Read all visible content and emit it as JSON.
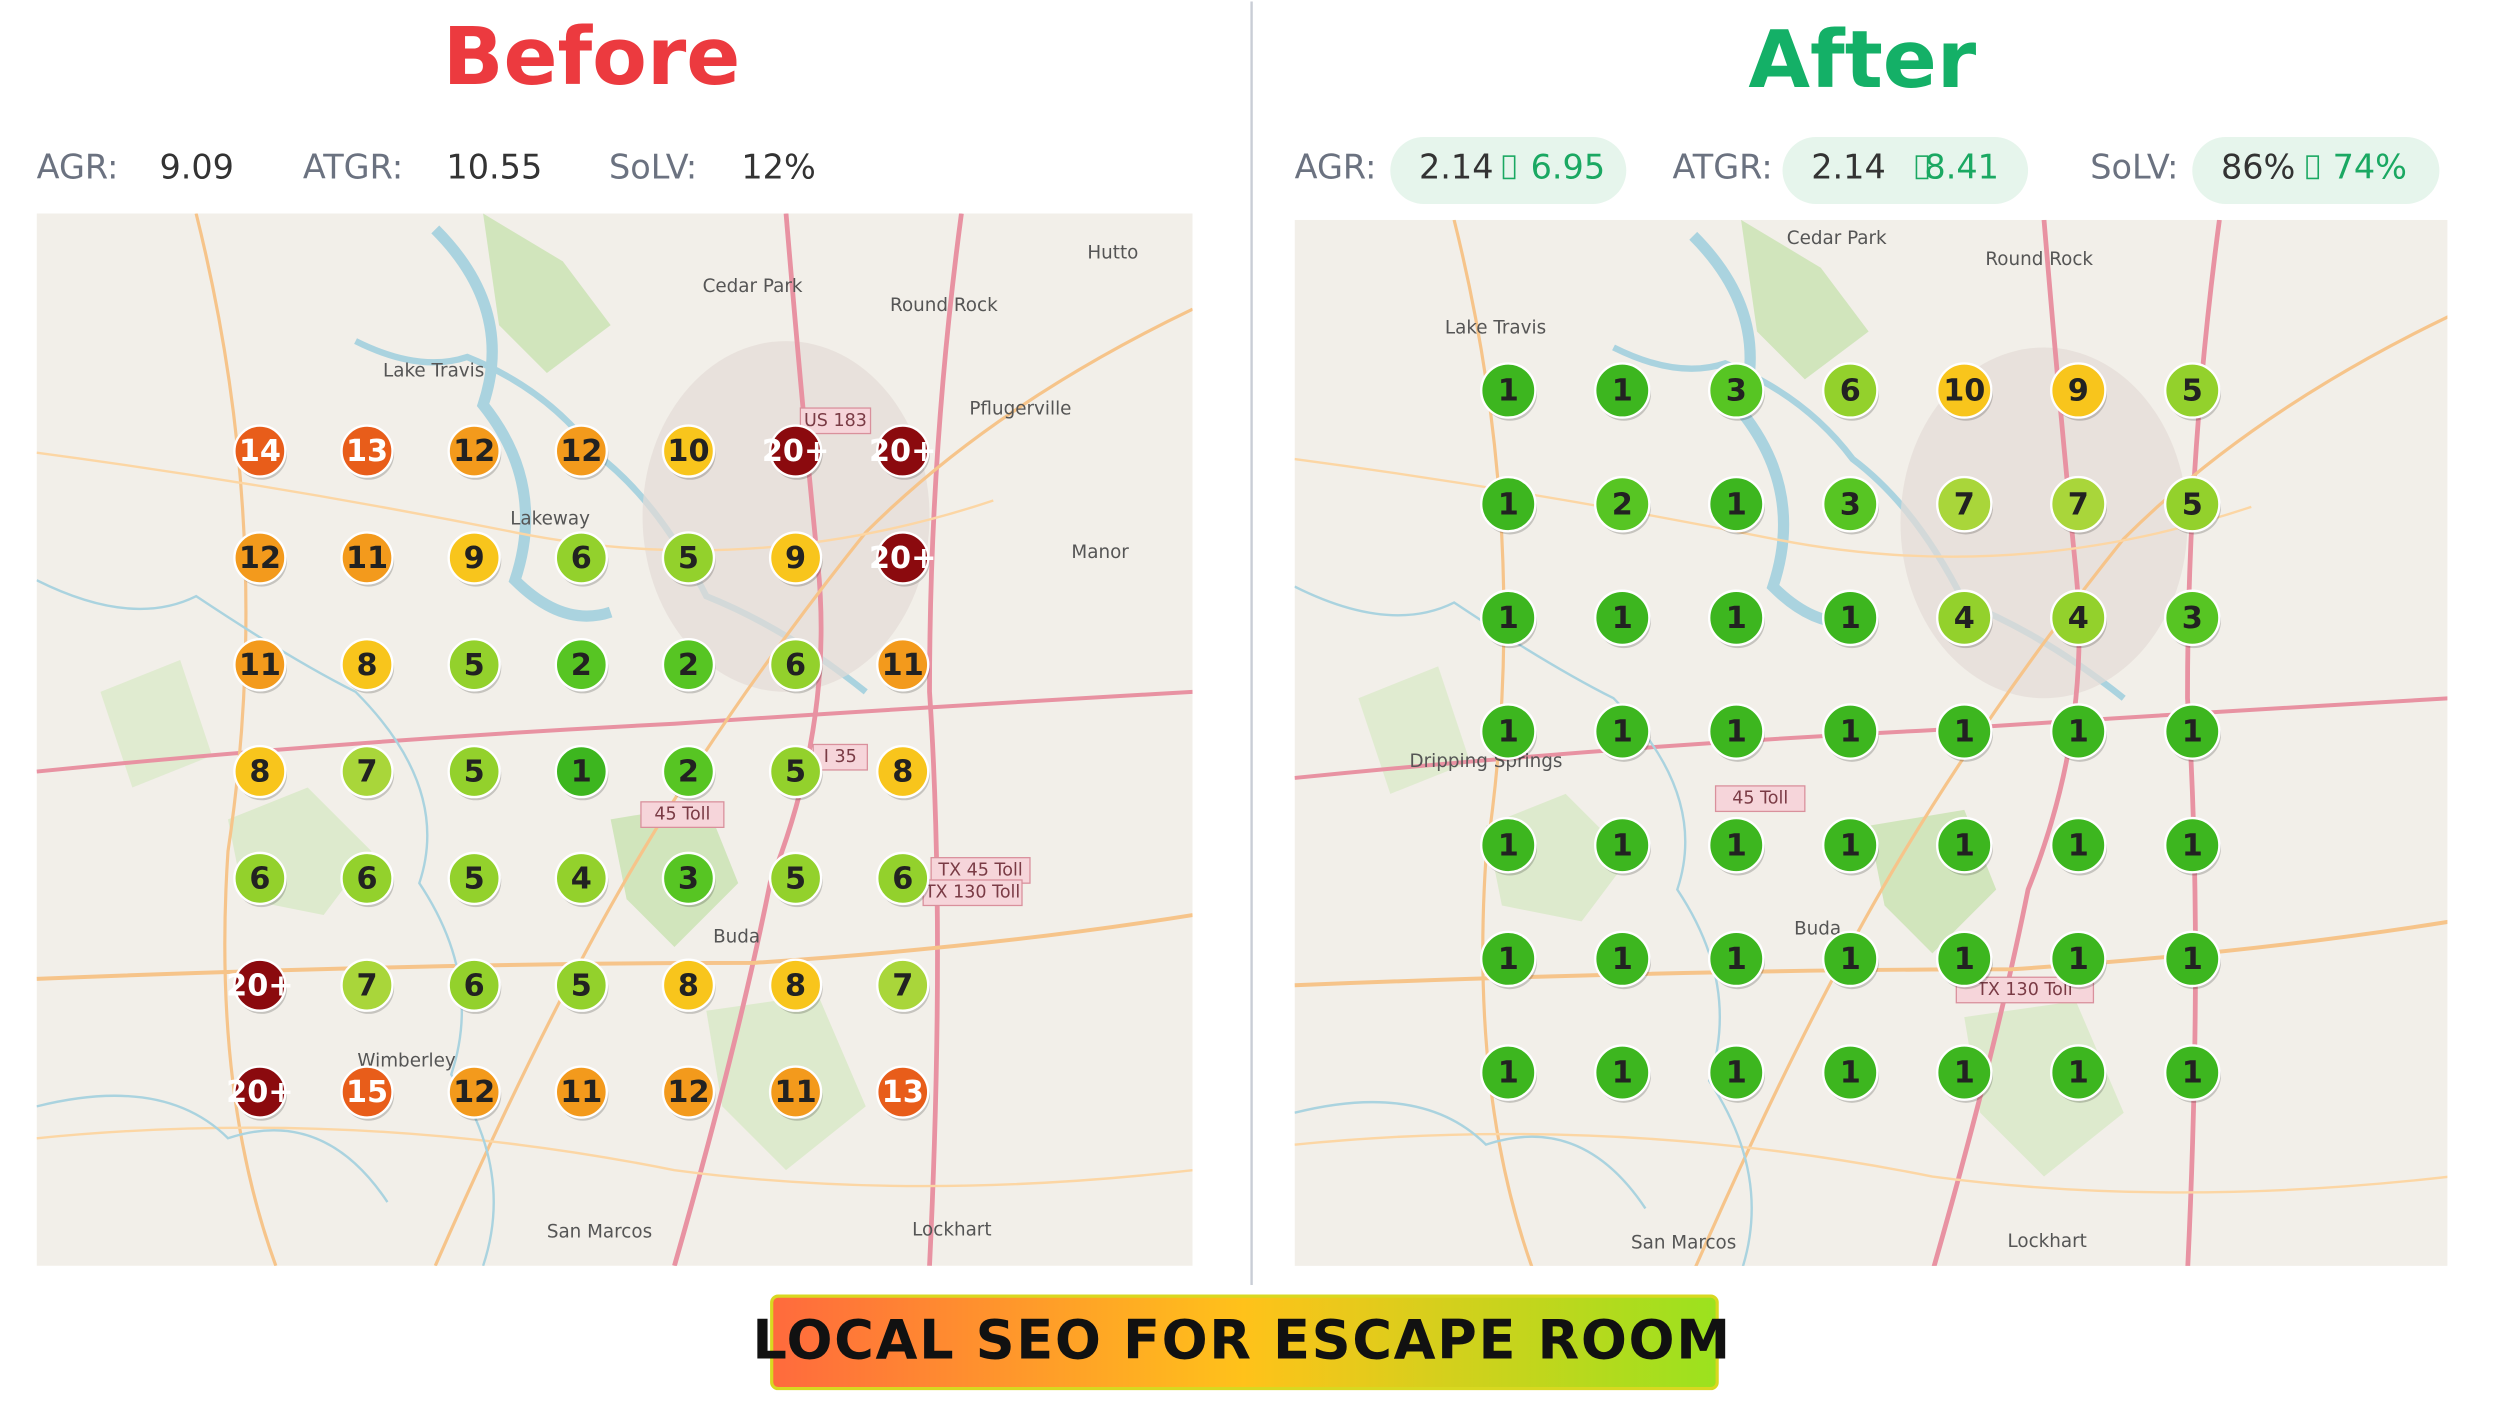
{
  "before": {
    "title": "Before",
    "metrics": [
      {
        "label": "AGR:",
        "value": "9.09"
      },
      {
        "label": "ATGR:",
        "value": "10.55"
      },
      {
        "label": "SoLV:",
        "value": "12%"
      }
    ],
    "grid": [
      [
        "14",
        "13",
        "12",
        "12",
        "10",
        "20+",
        "20+"
      ],
      [
        "12",
        "11",
        "9",
        "6",
        "5",
        "9",
        "20+"
      ],
      [
        "11",
        "8",
        "5",
        "2",
        "2",
        "6",
        "11"
      ],
      [
        "8",
        "7",
        "5",
        "1",
        "2",
        "5",
        "8"
      ],
      [
        "6",
        "6",
        "5",
        "4",
        "3",
        "5",
        "6"
      ],
      [
        "20+",
        "7",
        "6",
        "5",
        "8",
        "8",
        "7"
      ],
      [
        "20+",
        "15",
        "12",
        "11",
        "12",
        "11",
        "13"
      ]
    ],
    "map_labels": [
      "Round Rock",
      "Cedar Park",
      "Pflugerville",
      "Hutto",
      "Lakeway",
      "Manor",
      "Buda",
      "Wimberley",
      "San Marcos",
      "Lockhart",
      "Lake Travis"
    ],
    "road_labels": [
      "US 183",
      "I 35",
      "45 Toll",
      "TX 45 Toll",
      "TX 130 Toll"
    ]
  },
  "after": {
    "title": "After",
    "metrics": [
      {
        "label": "AGR:",
        "value": "2.14",
        "change": "6.95"
      },
      {
        "label": "ATGR:",
        "value": "2.14",
        "change": "8.41"
      },
      {
        "label": "SoLV:",
        "value": "86%",
        "change": "74%"
      }
    ],
    "grid": [
      [
        "1",
        "1",
        "3",
        "6",
        "10",
        "9",
        "5"
      ],
      [
        "1",
        "2",
        "1",
        "3",
        "7",
        "7",
        "5"
      ],
      [
        "1",
        "1",
        "1",
        "1",
        "4",
        "4",
        "3"
      ],
      [
        "1",
        "1",
        "1",
        "1",
        "1",
        "1",
        "1"
      ],
      [
        "1",
        "1",
        "1",
        "1",
        "1",
        "1",
        "1"
      ],
      [
        "1",
        "1",
        "1",
        "1",
        "1",
        "1",
        "1"
      ],
      [
        "1",
        "1",
        "1",
        "1",
        "1",
        "1",
        "1"
      ]
    ],
    "map_labels": [
      "Round Rock",
      "Cedar Park",
      "Lake Travis",
      "Dripping Springs",
      "Buda",
      "San Marcos",
      "Lockhart"
    ],
    "road_labels": [
      "45 Toll",
      "TX 130 Toll"
    ]
  },
  "banner": "LOCAL SEO FOR ESCAPE ROOM"
}
